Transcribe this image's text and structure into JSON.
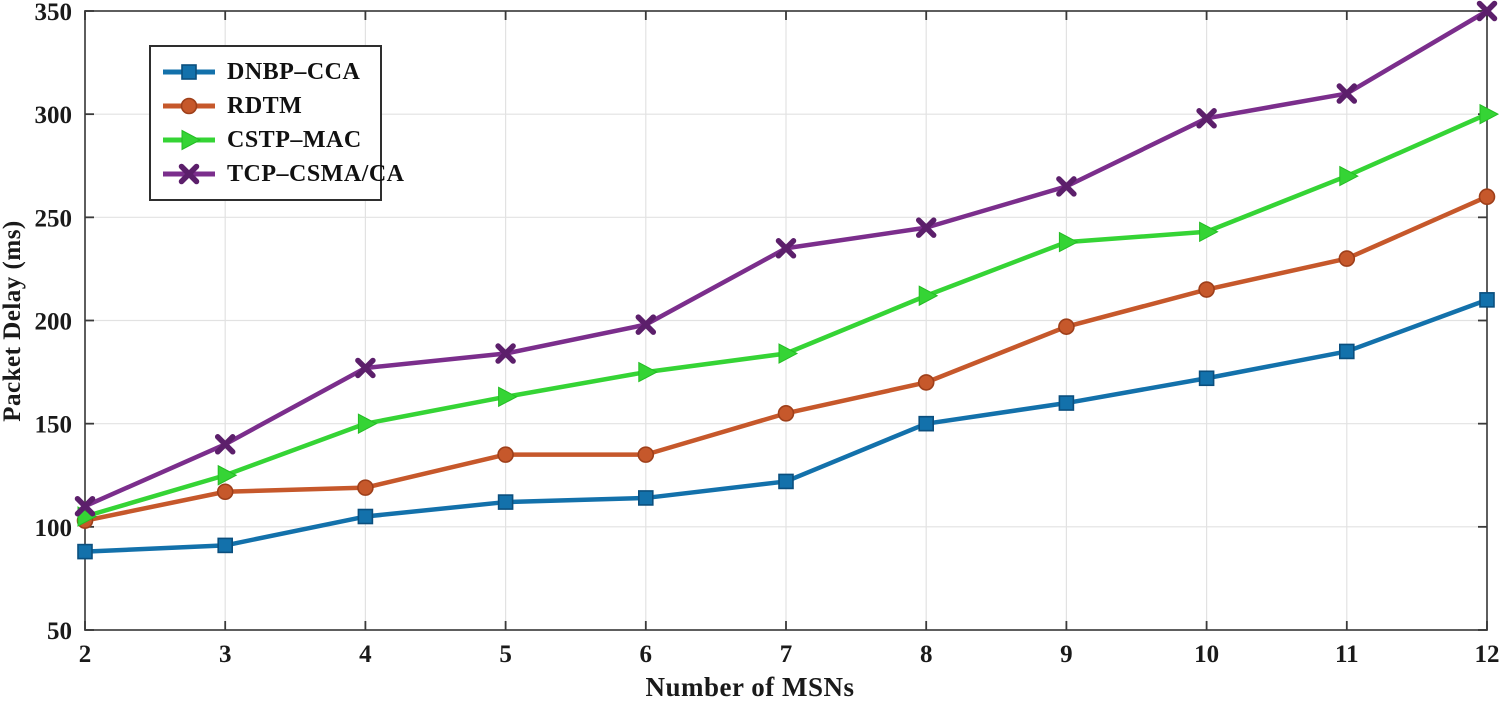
{
  "chart_data": {
    "type": "line",
    "title": "",
    "xlabel": "Number of MSNs",
    "ylabel": "Packet Delay (ms)",
    "x": [
      2,
      3,
      4,
      5,
      6,
      7,
      8,
      9,
      10,
      11,
      12
    ],
    "xlim": [
      2,
      12
    ],
    "ylim": [
      50,
      350
    ],
    "xticks": [
      2,
      3,
      4,
      5,
      6,
      7,
      8,
      9,
      10,
      11,
      12
    ],
    "yticks": [
      50,
      100,
      150,
      200,
      250,
      300,
      350
    ],
    "grid": true,
    "legend_position": "top-left",
    "series": [
      {
        "name": "DNBP–CCA",
        "marker": "square",
        "color": "#1371ab",
        "edge": "#0b4f7e",
        "values": [
          88,
          91,
          105,
          112,
          114,
          122,
          150,
          160,
          172,
          185,
          210
        ]
      },
      {
        "name": "RDTM",
        "marker": "circle",
        "color": "#c6582b",
        "edge": "#9e3f1a",
        "values": [
          103,
          117,
          119,
          135,
          135,
          155,
          170,
          197,
          215,
          230,
          260
        ]
      },
      {
        "name": "CSTP–MAC",
        "marker": "triangle-right",
        "color": "#35d435",
        "edge": "#24bc24",
        "values": [
          105,
          125,
          150,
          163,
          175,
          184,
          212,
          238,
          243,
          270,
          300
        ]
      },
      {
        "name": "TCP–CSMA/CA",
        "marker": "x",
        "color": "#7b2e8c",
        "edge": "#5c1f6b",
        "values": [
          110,
          140,
          177,
          184,
          198,
          235,
          245,
          265,
          298,
          310,
          350
        ]
      }
    ],
    "colors": {
      "grid": "#e2e2e2",
      "axis_box": "#4d4d4d",
      "tick": "#3a3a3a",
      "tick_label": "#1a1a1a",
      "background": "#ffffff"
    }
  }
}
